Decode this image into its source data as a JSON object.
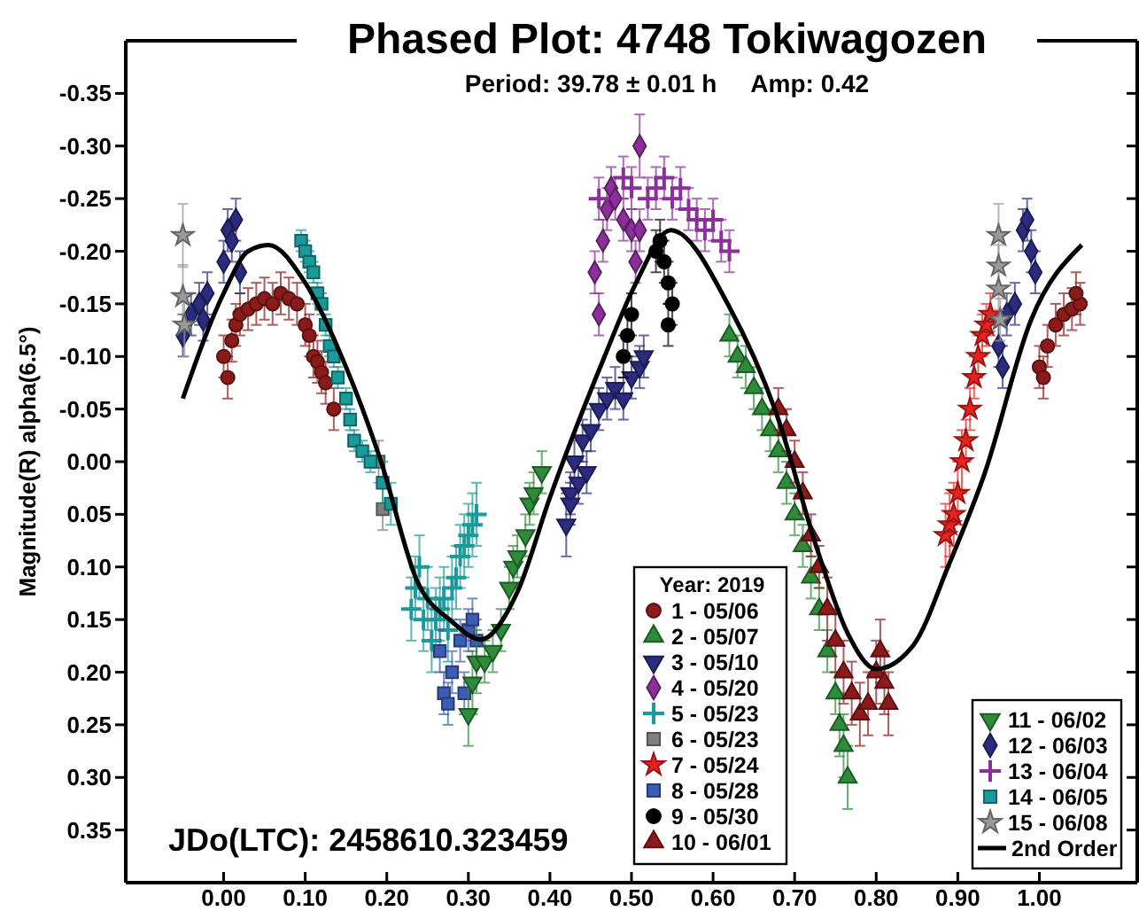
{
  "chart_data": {
    "type": "scatter",
    "title": "Phased Plot: 4748 Tokiwagozen",
    "subtitle": "Period: 39.78 ± 0.01 h     Amp: 0.42",
    "ylabel": "Magnitude(R) alpha(6.5°)",
    "legend_title": "Year: 2019",
    "legend": "bottom",
    "annotations": [
      "JDo(LTC): 2458610.323459"
    ],
    "xlim": [
      -0.12,
      1.12
    ],
    "ylim": [
      0.4,
      -0.4
    ],
    "xticks": [
      {
        "value": 0,
        "label": "0.00"
      },
      {
        "value": 0.1,
        "label": "0.10"
      },
      {
        "value": 0.2,
        "label": "0.20"
      },
      {
        "value": 0.3,
        "label": "0.30"
      },
      {
        "value": 0.4,
        "label": "0.40"
      },
      {
        "value": 0.5,
        "label": "0.50"
      },
      {
        "value": 0.6,
        "label": "0.60"
      },
      {
        "value": 0.7,
        "label": "0.70"
      },
      {
        "value": 0.8,
        "label": "0.80"
      },
      {
        "value": 0.9,
        "label": "0.90"
      },
      {
        "value": 1,
        "label": "1.00"
      }
    ],
    "yticks": [
      {
        "value": -0.35,
        "label": "-0.35"
      },
      {
        "value": -0.3,
        "label": "-0.30"
      },
      {
        "value": -0.25,
        "label": "-0.25"
      },
      {
        "value": -0.2,
        "label": "-0.20"
      },
      {
        "value": -0.15,
        "label": "-0.15"
      },
      {
        "value": -0.1,
        "label": "-0.10"
      },
      {
        "value": -0.05,
        "label": "-0.05"
      },
      {
        "value": 0,
        "label": "0.00"
      },
      {
        "value": 0.05,
        "label": "0.05"
      },
      {
        "value": 0.1,
        "label": "0.10"
      },
      {
        "value": 0.15,
        "label": "0.15"
      },
      {
        "value": 0.2,
        "label": "0.20"
      },
      {
        "value": 0.25,
        "label": "0.25"
      },
      {
        "value": 0.3,
        "label": "0.30"
      },
      {
        "value": 0.35,
        "label": "0.35"
      }
    ],
    "grid": false,
    "series": [
      {
        "name": "1 - 05/06",
        "color": "#8b1a1a",
        "marker": "circle",
        "x": [
          0,
          0.005,
          0.01,
          0.015,
          0.02,
          0.03,
          0.04,
          0.05,
          0.06,
          0.07,
          0.08,
          0.09,
          0.1,
          0.105,
          0.11,
          0.115,
          0.12,
          0.125,
          0.135,
          1,
          1.005,
          1.01,
          1.02,
          1.03,
          1.04,
          1.05,
          1.045
        ],
        "values": [
          -0.1,
          -0.08,
          -0.115,
          -0.13,
          -0.14,
          -0.145,
          -0.15,
          -0.155,
          -0.15,
          -0.16,
          -0.155,
          -0.15,
          -0.13,
          -0.12,
          -0.1,
          -0.095,
          -0.085,
          -0.075,
          -0.05,
          -0.09,
          -0.08,
          -0.11,
          -0.13,
          -0.14,
          -0.145,
          -0.15,
          -0.16
        ],
        "errors": [
          0.02,
          0.02,
          0.02,
          0.02,
          0.02,
          0.02,
          0.02,
          0.02,
          0.02,
          0.02,
          0.02,
          0.02,
          0.02,
          0.02,
          0.02,
          0.02,
          0.02,
          0.02,
          0.02,
          0.02,
          0.02,
          0.02,
          0.02,
          0.02,
          0.02,
          0.02,
          0.02
        ]
      },
      {
        "name": "2 - 05/07",
        "color": "#2e8b3a",
        "marker": "triangle",
        "x": [
          0.62,
          0.63,
          0.64,
          0.65,
          0.66,
          0.67,
          0.68,
          0.69,
          0.7,
          0.71,
          0.72,
          0.73,
          0.74,
          0.75,
          0.755,
          0.76,
          0.765
        ],
        "values": [
          -0.12,
          -0.1,
          -0.09,
          -0.07,
          -0.05,
          -0.03,
          -0.01,
          0.02,
          0.05,
          0.08,
          0.11,
          0.14,
          0.18,
          0.22,
          0.25,
          0.27,
          0.3
        ],
        "errors": [
          0.02,
          0.02,
          0.02,
          0.02,
          0.02,
          0.02,
          0.02,
          0.02,
          0.02,
          0.02,
          0.02,
          0.02,
          0.02,
          0.02,
          0.03,
          0.03,
          0.03
        ]
      },
      {
        "name": "3 - 05/10",
        "color": "#2b2b80",
        "marker": "triangle-down",
        "x": [
          0.42,
          0.425,
          0.425,
          0.43,
          0.435,
          0.44,
          0.445,
          0.45,
          0.46,
          0.47,
          0.48,
          0.49,
          0.5,
          0.51,
          0.515
        ],
        "values": [
          0.06,
          0.03,
          0.04,
          0,
          0.02,
          -0.02,
          0.01,
          -0.03,
          -0.05,
          -0.06,
          -0.07,
          -0.06,
          -0.08,
          -0.09,
          -0.1
        ],
        "errors": [
          0.03,
          0.02,
          0.02,
          0.02,
          0.02,
          0.02,
          0.02,
          0.02,
          0.02,
          0.02,
          0.02,
          0.02,
          0.02,
          0.02,
          0.02
        ]
      },
      {
        "name": "4 - 05/20",
        "color": "#8b2f9a",
        "marker": "diamond",
        "x": [
          0.455,
          0.46,
          0.465,
          0.47,
          0.475,
          0.48,
          0.49,
          0.5,
          0.505,
          0.51,
          0.51
        ],
        "values": [
          -0.18,
          -0.14,
          -0.21,
          -0.24,
          -0.26,
          -0.25,
          -0.23,
          -0.22,
          -0.19,
          -0.22,
          -0.3
        ],
        "errors": [
          0.02,
          0.02,
          0.02,
          0.02,
          0.02,
          0.02,
          0.02,
          0.02,
          0.02,
          0.02,
          0.03
        ]
      },
      {
        "name": "5 - 05/23",
        "color": "#1a9a9a",
        "marker": "cross",
        "x": [
          0.23,
          0.235,
          0.24,
          0.245,
          0.25,
          0.255,
          0.26,
          0.265,
          0.27,
          0.275,
          0.28,
          0.285,
          0.29,
          0.295,
          0.3,
          0.305,
          0.31
        ],
        "values": [
          0.14,
          0.12,
          0.1,
          0.15,
          0.13,
          0.17,
          0.15,
          0.14,
          0.13,
          0.16,
          0.12,
          0.11,
          0.09,
          0.08,
          0.07,
          0.06,
          0.05
        ],
        "errors": [
          0.03,
          0.03,
          0.03,
          0.03,
          0.03,
          0.03,
          0.03,
          0.03,
          0.03,
          0.03,
          0.03,
          0.03,
          0.03,
          0.03,
          0.03,
          0.03,
          0.03
        ]
      },
      {
        "name": "6 - 05/23",
        "color": "#808080",
        "marker": "square",
        "x": [
          0.19,
          0.195
        ],
        "values": [
          0,
          0.045
        ],
        "errors": [
          0.02,
          0.02
        ]
      },
      {
        "name": "7 - 05/24",
        "color": "#e8231f",
        "marker": "star",
        "x": [
          0.885,
          0.89,
          0.895,
          0.9,
          0.905,
          0.91,
          0.915,
          0.92,
          0.925,
          0.93,
          0.935,
          0.94
        ],
        "values": [
          0.07,
          0.06,
          0.05,
          0.03,
          0,
          -0.02,
          -0.05,
          -0.08,
          -0.1,
          -0.12,
          -0.13,
          -0.14
        ],
        "errors": [
          0.03,
          0.03,
          0.03,
          0.03,
          0.03,
          0.02,
          0.02,
          0.02,
          0.02,
          0.02,
          0.02,
          0.02
        ]
      },
      {
        "name": "8 - 05/28",
        "color": "#3b5bb5",
        "marker": "square",
        "x": [
          0.265,
          0.27,
          0.275,
          0.28,
          0.29,
          0.295,
          0.3,
          0.305,
          0.31
        ],
        "values": [
          0.18,
          0.22,
          0.23,
          0.2,
          0.17,
          0.22,
          0.16,
          0.15,
          0.17
        ],
        "errors": [
          0.02,
          0.02,
          0.02,
          0.02,
          0.02,
          0.02,
          0.02,
          0.02,
          0.02
        ]
      },
      {
        "name": "9 - 05/30",
        "color": "#000000",
        "marker": "circle",
        "x": [
          0.49,
          0.495,
          0.5,
          0.53,
          0.535,
          0.54,
          0.545,
          0.55,
          0.545
        ],
        "values": [
          -0.1,
          -0.12,
          -0.14,
          -0.2,
          -0.21,
          -0.19,
          -0.17,
          -0.15,
          -0.13
        ],
        "errors": [
          0.02,
          0.02,
          0.02,
          0.02,
          0.02,
          0.02,
          0.02,
          0.02,
          0.02
        ]
      },
      {
        "name": "10 - 06/01",
        "color": "#8b1a1a",
        "marker": "triangle",
        "x": [
          0.68,
          0.69,
          0.7,
          0.71,
          0.72,
          0.73,
          0.74,
          0.75,
          0.76,
          0.77,
          0.78,
          0.79,
          0.8,
          0.805,
          0.81,
          0.815
        ],
        "values": [
          -0.05,
          -0.03,
          0,
          0.03,
          0.07,
          0.1,
          0.14,
          0.17,
          0.2,
          0.22,
          0.24,
          0.23,
          0.2,
          0.18,
          0.21,
          0.23
        ],
        "errors": [
          0.02,
          0.02,
          0.02,
          0.02,
          0.02,
          0.02,
          0.03,
          0.03,
          0.03,
          0.03,
          0.03,
          0.03,
          0.03,
          0.03,
          0.03,
          0.03
        ]
      },
      {
        "name": "11 - 06/02",
        "color": "#2e8b3a",
        "marker": "triangle-down",
        "x": [
          0.3,
          0.305,
          0.31,
          0.32,
          0.33,
          0.34,
          0.35,
          0.355,
          0.36,
          0.37,
          0.375,
          0.38,
          0.39
        ],
        "values": [
          0.24,
          0.21,
          0.19,
          0.19,
          0.18,
          0.16,
          0.12,
          0.1,
          0.09,
          0.07,
          0.04,
          0.03,
          0.01
        ],
        "errors": [
          0.03,
          0.03,
          0.03,
          0.02,
          0.02,
          0.02,
          0.02,
          0.02,
          0.02,
          0.02,
          0.02,
          0.02,
          0.02
        ]
      },
      {
        "name": "12 - 06/03",
        "color": "#2b2b80",
        "marker": "diamond",
        "x": [
          -0.05,
          -0.025,
          -0.04,
          -0.03,
          -0.02,
          0,
          0.005,
          0.01,
          0.015,
          0.02,
          0.95,
          0.955,
          0.96,
          0.97,
          0.98,
          0.985,
          0.99,
          0.995
        ],
        "values": [
          -0.12,
          -0.135,
          -0.14,
          -0.15,
          -0.16,
          -0.19,
          -0.22,
          -0.21,
          -0.23,
          -0.18,
          -0.11,
          -0.09,
          -0.14,
          -0.15,
          -0.22,
          -0.23,
          -0.2,
          -0.18
        ],
        "errors": [
          0.02,
          0.02,
          0.02,
          0.02,
          0.02,
          0.02,
          0.02,
          0.02,
          0.02,
          0.02,
          0.02,
          0.02,
          0.02,
          0.02,
          0.02,
          0.02,
          0.02,
          0.02
        ]
      },
      {
        "name": "13 - 06/04",
        "color": "#8b2f9a",
        "marker": "cross",
        "x": [
          0.46,
          0.49,
          0.5,
          0.52,
          0.53,
          0.54,
          0.55,
          0.56,
          0.57,
          0.58,
          0.59,
          0.6,
          0.61,
          0.62
        ],
        "values": [
          -0.25,
          -0.27,
          -0.26,
          -0.25,
          -0.26,
          -0.27,
          -0.25,
          -0.26,
          -0.24,
          -0.23,
          -0.22,
          -0.23,
          -0.21,
          -0.2
        ],
        "errors": [
          0.02,
          0.02,
          0.02,
          0.02,
          0.02,
          0.02,
          0.02,
          0.02,
          0.02,
          0.02,
          0.02,
          0.02,
          0.02,
          0.02
        ]
      },
      {
        "name": "14 - 06/05",
        "color": "#1a9a9a",
        "marker": "square",
        "x": [
          0.095,
          0.1,
          0.105,
          0.11,
          0.115,
          0.12,
          0.125,
          0.13,
          0.135,
          0.14,
          0.15,
          0.155,
          0.16,
          0.17,
          0.18,
          0.195,
          0.205
        ],
        "values": [
          -0.21,
          -0.2,
          -0.19,
          -0.18,
          -0.16,
          -0.15,
          -0.13,
          -0.11,
          -0.1,
          -0.08,
          -0.06,
          -0.04,
          -0.02,
          -0.01,
          0,
          0.02,
          0.04
        ],
        "errors": [
          0.01,
          0.01,
          0.01,
          0.01,
          0.01,
          0.01,
          0.01,
          0.01,
          0.01,
          0.01,
          0.01,
          0.01,
          0.01,
          0.01,
          0.01,
          0.02,
          0.02
        ]
      },
      {
        "name": "15 - 06/08",
        "color": "#9a9a9a",
        "marker": "star",
        "x": [
          -0.05,
          -0.05,
          -0.048,
          0.95,
          0.95,
          0.95,
          0.952
        ],
        "values": [
          -0.215,
          -0.157,
          -0.13,
          -0.215,
          -0.186,
          -0.164,
          -0.135
        ],
        "errors": [
          0.03,
          0.03,
          0.03,
          0.03,
          0.02,
          0.02,
          0.02
        ]
      },
      {
        "name": "2nd Order",
        "type": "line",
        "color": "#000000",
        "marker": "none",
        "x": [
          -0.05,
          0,
          0.03,
          0.055,
          0.1,
          0.15,
          0.193,
          0.237,
          0.28,
          0.315,
          0.36,
          0.4,
          0.467,
          0.505,
          0.548,
          0.62,
          0.678,
          0.728,
          0.765,
          0.8,
          0.845,
          0.89,
          0.933,
          0.99,
          1.052
        ],
        "values": [
          -0.06,
          -0.16,
          -0.2,
          -0.206,
          -0.17,
          -0.09,
          0,
          0.113,
          0.152,
          0.169,
          0.124,
          0.034,
          -0.1,
          -0.169,
          -0.22,
          -0.147,
          -0.045,
          0.084,
          0.163,
          0.197,
          0.175,
          0.096,
          0.011,
          -0.135,
          -0.206
        ]
      }
    ]
  }
}
